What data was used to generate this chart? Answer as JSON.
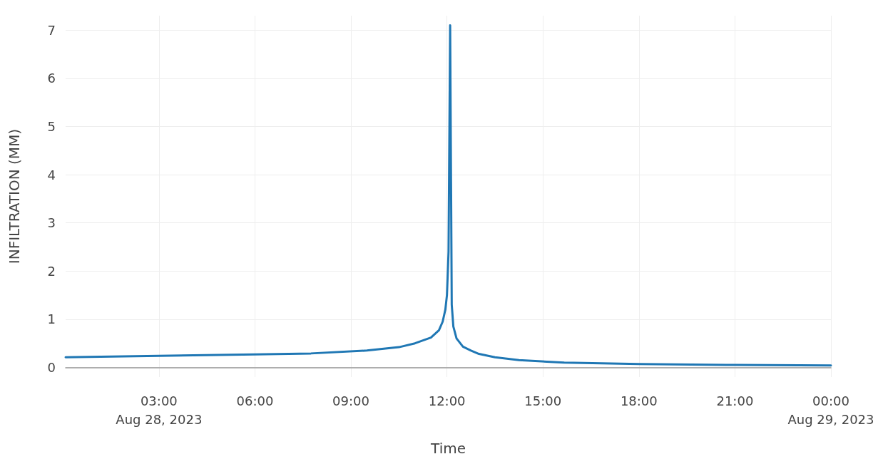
{
  "chart_data": {
    "type": "line",
    "xlabel": "Time",
    "ylabel": "INFILTRATION (MM)",
    "x": [
      "2023-08-28T00:05",
      "2023-08-28T03:00",
      "2023-08-28T06:00",
      "2023-08-28T07:45",
      "2023-08-28T09:30",
      "2023-08-28T10:30",
      "2023-08-28T11:00",
      "2023-08-28T11:30",
      "2023-08-28T11:45",
      "2023-08-28T11:52",
      "2023-08-28T11:57",
      "2023-08-28T12:00",
      "2023-08-28T12:03",
      "2023-08-28T12:06",
      "2023-08-28T12:09",
      "2023-08-28T12:12",
      "2023-08-28T12:18",
      "2023-08-28T12:30",
      "2023-08-28T12:45",
      "2023-08-28T13:00",
      "2023-08-28T13:30",
      "2023-08-28T14:15",
      "2023-08-28T15:40",
      "2023-08-28T18:00",
      "2023-08-28T21:00",
      "2023-08-29T00:00"
    ],
    "series": [
      {
        "color": "#1f77b4",
        "values": [
          0.21,
          0.24,
          0.27,
          0.29,
          0.35,
          0.42,
          0.5,
          0.62,
          0.77,
          0.95,
          1.2,
          1.5,
          2.4,
          7.1,
          1.3,
          0.85,
          0.6,
          0.43,
          0.35,
          0.28,
          0.21,
          0.15,
          0.1,
          0.07,
          0.05,
          0.04
        ]
      }
    ],
    "xlim": [
      "2023-08-28T00:05",
      "2023-08-29T00:00"
    ],
    "xticks": [
      {
        "value": "2023-08-28T03:00",
        "label": "03:00\nAug 28, 2023"
      },
      {
        "value": "2023-08-28T06:00",
        "label": "06:00"
      },
      {
        "value": "2023-08-28T09:00",
        "label": "09:00"
      },
      {
        "value": "2023-08-28T12:00",
        "label": "12:00"
      },
      {
        "value": "2023-08-28T15:00",
        "label": "15:00"
      },
      {
        "value": "2023-08-28T18:00",
        "label": "18:00"
      },
      {
        "value": "2023-08-28T21:00",
        "label": "21:00"
      },
      {
        "value": "2023-08-29T00:00",
        "label": "00:00\nAug 29, 2023"
      }
    ],
    "ylim": [
      -0.2,
      7.3
    ],
    "yticks": [
      0,
      1,
      2,
      3,
      4,
      5,
      6,
      7
    ],
    "grid": true,
    "marker": "none",
    "line_style": "solid"
  }
}
